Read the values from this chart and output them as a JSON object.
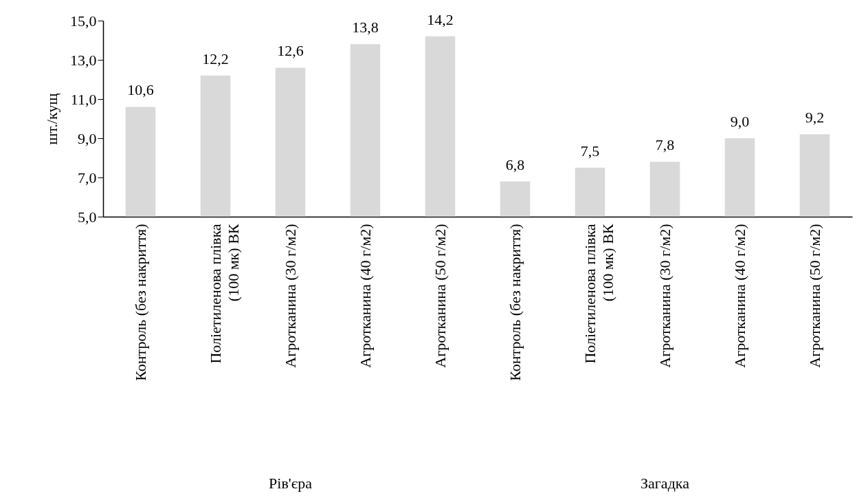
{
  "chart_data": {
    "type": "bar",
    "ylabel": "шт./кущ",
    "categories": [
      "Контроль (без накриття)",
      "Поліетиленова плівка (100 мк) ВК",
      "Агротканина (30 г/м2)",
      "Агротканина (40 г/м2)",
      "Агротканина (50 г/м2)",
      "Контроль (без накриття)",
      "Поліетиленова плівка (100 мк) ВК",
      "Агротканина (30 г/м2)",
      "Агротканина (40 г/м2)",
      "Агротканина (50 г/м2)"
    ],
    "values": [
      10.6,
      12.2,
      12.6,
      13.8,
      14.2,
      6.8,
      7.5,
      7.8,
      9.0,
      9.2
    ],
    "value_labels": [
      "10,6",
      "12,2",
      "12,6",
      "13,8",
      "14,2",
      "6,8",
      "7,5",
      "7,8",
      "9,0",
      "9,2"
    ],
    "color": "#d9d9d9",
    "ylim": [
      5,
      15
    ],
    "yticks": [
      {
        "value": 5,
        "label": "5,0"
      },
      {
        "value": 7,
        "label": "7,0"
      },
      {
        "value": 9,
        "label": "9,0"
      },
      {
        "value": 11,
        "label": "11,0"
      },
      {
        "value": 13,
        "label": "13,0"
      },
      {
        "value": 15,
        "label": "15,0"
      }
    ],
    "annotations": [
      "Рів'єра",
      "Загадка"
    ]
  }
}
